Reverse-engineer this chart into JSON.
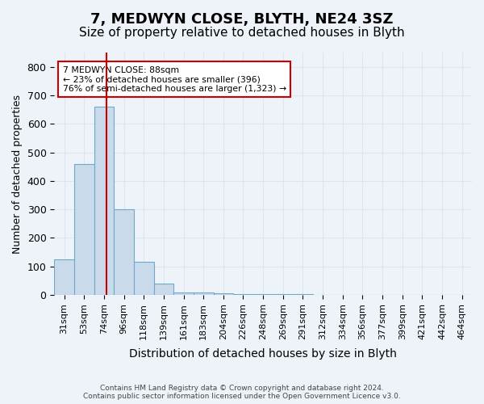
{
  "title": "7, MEDWYN CLOSE, BLYTH, NE24 3SZ",
  "subtitle": "Size of property relative to detached houses in Blyth",
  "xlabel": "Distribution of detached houses by size in Blyth",
  "ylabel": "Number of detached properties",
  "bin_labels": [
    "31sqm",
    "53sqm",
    "74sqm",
    "96sqm",
    "118sqm",
    "139sqm",
    "161sqm",
    "183sqm",
    "204sqm",
    "226sqm",
    "248sqm",
    "269sqm",
    "291sqm",
    "312sqm",
    "334sqm",
    "356sqm",
    "377sqm",
    "399sqm",
    "421sqm",
    "442sqm",
    "464sqm"
  ],
  "bar_heights": [
    125,
    460,
    660,
    300,
    115,
    40,
    10,
    8,
    5,
    3,
    3,
    2,
    2,
    0,
    0,
    0,
    0,
    0,
    0,
    0,
    0
  ],
  "bar_color": "#c9daea",
  "bar_edge_color": "#6fa8c9",
  "property_line_color": "#cc0000",
  "annotation_text": "7 MEDWYN CLOSE: 88sqm\n← 23% of detached houses are smaller (396)\n76% of semi-detached houses are larger (1,323) →",
  "annotation_box_color": "#ffffff",
  "annotation_box_edge_color": "#cc0000",
  "ylim": [
    0,
    850
  ],
  "yticks": [
    0,
    100,
    200,
    300,
    400,
    500,
    600,
    700,
    800
  ],
  "footer_text": "Contains HM Land Registry data © Crown copyright and database right 2024.\nContains public sector information licensed under the Open Government Licence v3.0.",
  "grid_color": "#dce6f1",
  "background_color": "#eef3f9",
  "title_fontsize": 13,
  "subtitle_fontsize": 11,
  "tick_fontsize": 8,
  "ylabel_fontsize": 9,
  "xlabel_fontsize": 10
}
